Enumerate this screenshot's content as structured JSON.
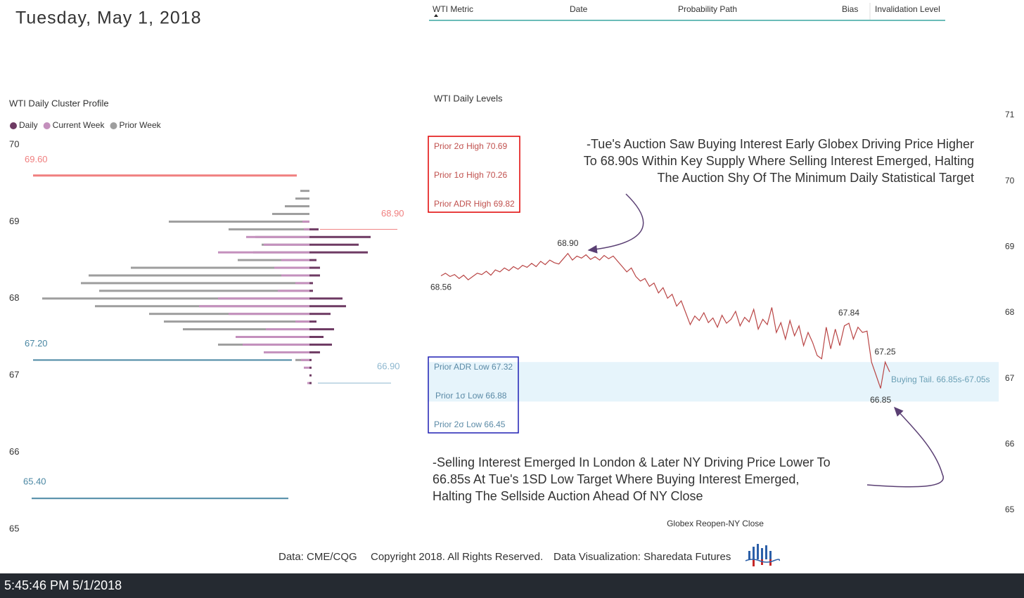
{
  "header": {
    "date": "Tuesday, May 1, 2018"
  },
  "table": {
    "columns": [
      "WTI Metric",
      "Date",
      "Probability Path",
      "Bias",
      "Invalidation Level"
    ]
  },
  "chart_data": [
    {
      "type": "profile",
      "title": "WTI Daily Cluster Profile",
      "y": [
        69.4,
        69.3,
        69.2,
        69.1,
        69.0,
        68.9,
        68.8,
        68.7,
        68.6,
        68.5,
        68.4,
        68.3,
        68.2,
        68.1,
        68.0,
        67.9,
        67.8,
        67.7,
        67.6,
        67.5,
        67.4,
        67.3,
        67.2,
        67.1,
        67.0,
        66.9
      ],
      "series": [
        {
          "name": "Prior Week",
          "color": "#9e9e9e",
          "side": "left",
          "values": [
            13,
            20,
            35,
            53,
            200,
            115,
            77,
            68,
            80,
            102,
            254,
            314,
            325,
            299,
            380,
            305,
            228,
            207,
            180,
            105,
            130,
            0,
            20,
            0,
            0,
            0
          ]
        },
        {
          "name": "Current Week",
          "color": "#c490bd",
          "side": "left",
          "values": [
            0,
            0,
            0,
            0,
            10,
            8,
            90,
            65,
            130,
            40,
            50,
            40,
            20,
            45,
            130,
            157,
            115,
            20,
            62,
            105,
            95,
            65,
            12,
            8,
            0,
            3
          ]
        },
        {
          "name": "Daily",
          "color": "#6e3a63",
          "side": "right",
          "values": [
            0,
            0,
            0,
            0,
            0,
            13,
            87,
            70,
            83,
            10,
            15,
            15,
            5,
            5,
            47,
            52,
            30,
            10,
            35,
            20,
            32,
            15,
            3,
            3,
            3,
            3
          ]
        }
      ],
      "legend_order": [
        "Daily",
        "Current Week",
        "Prior Week"
      ],
      "ylim": [
        65,
        70
      ],
      "yticks": [
        65,
        66,
        67,
        68,
        69,
        70
      ],
      "reference_lines": [
        {
          "value": 69.6,
          "label": "69.60",
          "color": "#f07f7f"
        },
        {
          "value": 68.9,
          "label": "68.90",
          "color": "#f07f7f"
        },
        {
          "value": 67.2,
          "label": "67.20",
          "color": "#4a87a3"
        },
        {
          "value": 66.9,
          "label": "66.90",
          "color": "#8db7cf"
        },
        {
          "value": 65.4,
          "label": "65.40",
          "color": "#4a87a3"
        }
      ]
    },
    {
      "type": "line",
      "title": "WTI Daily Levels",
      "x_label": "Globex Reopen-NY Close",
      "color": "#b94545",
      "values": [
        68.56,
        68.6,
        68.55,
        68.58,
        68.52,
        68.57,
        68.5,
        68.55,
        68.6,
        68.58,
        68.63,
        68.57,
        68.65,
        68.62,
        68.68,
        68.64,
        68.7,
        68.66,
        68.72,
        68.69,
        68.75,
        68.7,
        68.78,
        68.73,
        68.8,
        68.76,
        68.74,
        68.82,
        68.9,
        68.8,
        68.86,
        68.83,
        68.88,
        68.81,
        68.85,
        68.8,
        68.87,
        68.82,
        68.86,
        68.78,
        68.7,
        68.62,
        68.68,
        68.55,
        68.48,
        68.52,
        68.4,
        68.45,
        68.3,
        68.38,
        68.22,
        68.28,
        68.1,
        68.18,
        68.0,
        67.82,
        67.95,
        67.88,
        68.0,
        67.85,
        67.92,
        67.78,
        67.96,
        67.84,
        67.9,
        68.02,
        67.8,
        67.93,
        67.86,
        68.05,
        67.75,
        67.9,
        67.82,
        68.08,
        67.7,
        67.85,
        67.6,
        67.88,
        67.65,
        67.8,
        67.5,
        67.7,
        67.55,
        67.35,
        67.3,
        67.78,
        67.45,
        67.75,
        67.5,
        67.8,
        67.84,
        67.6,
        67.78,
        67.7,
        67.72,
        67.25,
        67.05,
        66.85,
        67.25,
        67.1
      ],
      "value_labels": [
        "68.56",
        null,
        null,
        null,
        null,
        null,
        null,
        null,
        null,
        null,
        null,
        null,
        null,
        null,
        null,
        null,
        null,
        null,
        null,
        null,
        null,
        null,
        null,
        null,
        null,
        null,
        null,
        null,
        "68.90",
        null,
        null,
        null,
        null,
        null,
        null,
        null,
        null,
        null,
        null,
        null,
        null,
        null,
        null,
        null,
        null,
        null,
        null,
        null,
        null,
        null,
        null,
        null,
        null,
        null,
        null,
        null,
        null,
        null,
        null,
        null,
        null,
        null,
        null,
        null,
        null,
        null,
        null,
        null,
        null,
        null,
        null,
        null,
        null,
        null,
        null,
        null,
        null,
        null,
        null,
        null,
        null,
        null,
        null,
        null,
        null,
        null,
        null,
        null,
        null,
        null,
        "67.84",
        null,
        null,
        null,
        null,
        null,
        null,
        "66.85",
        "67.25",
        null
      ],
      "ylim": [
        65,
        71
      ],
      "yticks": [
        65,
        66,
        67,
        68,
        69,
        70,
        71
      ],
      "shaded_band": {
        "from": 66.65,
        "to": 67.25,
        "color": "#e6f4fb",
        "label": "Buying Tail. 66.85s-67.05s"
      },
      "level_boxes": [
        {
          "color": "#e00000",
          "text_color": "#c0504d",
          "items": [
            "Prior 2σ High 70.69",
            "Prior 1σ High 70.26",
            "Prior ADR High 69.82"
          ]
        },
        {
          "color": "#1f1fb4",
          "text_color": "#5b8aa6",
          "items": [
            "Prior ADR Low 67.32",
            "Prior 1σ Low 66.88",
            "Prior 2σ Low 66.45"
          ]
        }
      ],
      "annotations": [
        [
          "-Tue's Auction Saw Buying Interest Early Globex  Driving Price Higher",
          "To 68.90s Within Key Supply Where Selling Interest Emerged, Halting",
          "The Auction Shy Of The Minimum Daily Statistical Target"
        ],
        [
          "-Selling Interest Emerged In London & Later NY Driving Price Lower To",
          "66.85s At Tue's 1SD Low Target Where Buying Interest Emerged,",
          "Halting The Sellside Auction Ahead Of NY Close"
        ]
      ]
    }
  ],
  "footer": {
    "source": "Data: CME/CQG",
    "copyright": "Copyright 2018. All Rights Reserved.",
    "credit": "Data Visualization: Sharedata Futures"
  },
  "status_bar": "5:45:46 PM 5/1/2018"
}
